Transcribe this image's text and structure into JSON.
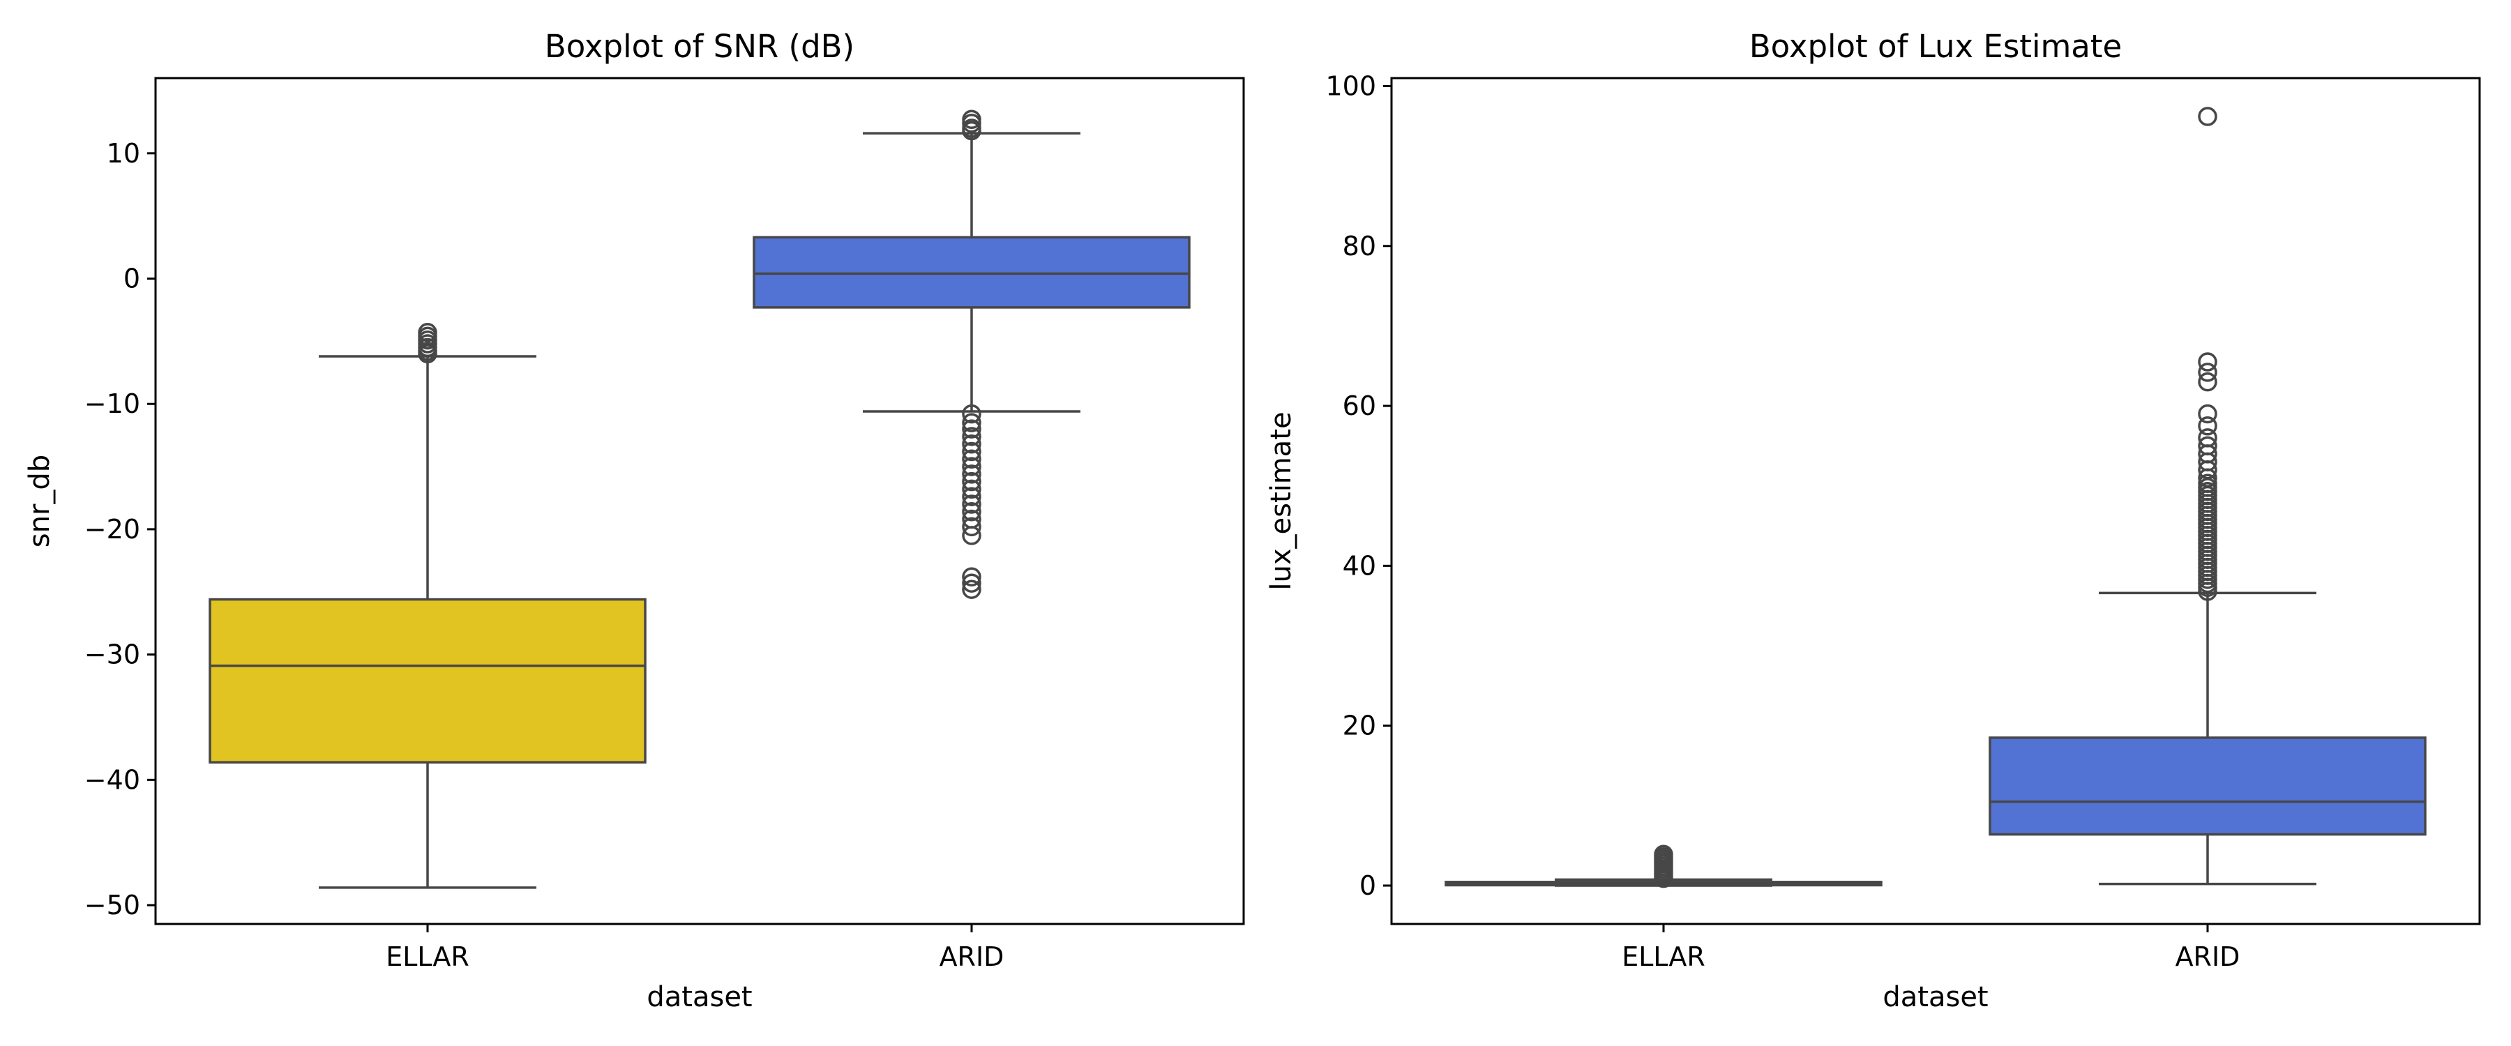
{
  "chart_data": [
    {
      "type": "boxplot",
      "title": "Boxplot of SNR (dB)",
      "xlabel": "dataset",
      "ylabel": "snr_db",
      "categories": [
        "ELLAR",
        "ARID"
      ],
      "ylim": [
        -51.5,
        16
      ],
      "yticks": [
        10,
        0,
        -10,
        -20,
        -30,
        -40,
        -50
      ],
      "ytick_labels": [
        "10",
        "0",
        "−10",
        "−20",
        "−30",
        "−40",
        "−50"
      ],
      "boxes": [
        {
          "name": "ELLAR",
          "color": "#e1c421",
          "whisker_low": -48.6,
          "q1": -38.6,
          "median": -30.9,
          "q3": -25.6,
          "whisker_high": -6.2,
          "outliers": [
            -4.3,
            -4.6,
            -4.9,
            -5.2,
            -5.5,
            -5.8,
            -6.0
          ]
        },
        {
          "name": "ARID",
          "color": "#5273d4",
          "whisker_low": -10.6,
          "q1": -2.3,
          "median": 0.4,
          "q3": 3.3,
          "whisker_high": 11.6,
          "outliers": [
            12.7,
            12.4,
            12.0,
            11.8,
            -10.8,
            -11.5,
            -12.0,
            -12.6,
            -13.2,
            -13.8,
            -14.4,
            -15.0,
            -15.6,
            -16.2,
            -16.8,
            -17.4,
            -18.0,
            -18.6,
            -19.2,
            -19.8,
            -20.5,
            -23.8,
            -24.3,
            -24.8
          ]
        }
      ]
    },
    {
      "type": "boxplot",
      "title": "Boxplot of Lux Estimate",
      "xlabel": "dataset",
      "ylabel": "lux_estimate",
      "categories": [
        "ELLAR",
        "ARID"
      ],
      "ylim": [
        -4.8,
        101
      ],
      "yticks": [
        0,
        20,
        40,
        60,
        80,
        100
      ],
      "ytick_labels": [
        "0",
        "20",
        "40",
        "60",
        "80",
        "100"
      ],
      "boxes": [
        {
          "name": "ELLAR",
          "color": "#e1c421",
          "whisker_low": 0,
          "q1": 0.05,
          "median": 0.25,
          "q3": 0.45,
          "whisker_high": 0.75,
          "outliers": [
            0.9,
            1.2,
            1.5,
            1.8,
            2.1,
            2.4,
            2.7,
            3.0,
            3.3,
            3.6,
            3.9
          ]
        },
        {
          "name": "ARID",
          "color": "#5273d4",
          "whisker_low": 0.2,
          "q1": 6.4,
          "median": 10.5,
          "q3": 18.5,
          "whisker_high": 36.6,
          "outliers": [
            36.8,
            37.3,
            37.8,
            38.3,
            38.8,
            39.3,
            39.8,
            40.3,
            40.8,
            41.3,
            41.8,
            42.3,
            42.8,
            43.3,
            43.8,
            44.3,
            44.8,
            45.3,
            45.8,
            46.3,
            46.8,
            47.3,
            47.8,
            48.3,
            48.8,
            49.3,
            49.8,
            50.3,
            51.0,
            52.0,
            53.0,
            54.0,
            55.0,
            56.0,
            57.5,
            59.0,
            63.0,
            64.2,
            65.5,
            96.2
          ]
        }
      ]
    }
  ]
}
